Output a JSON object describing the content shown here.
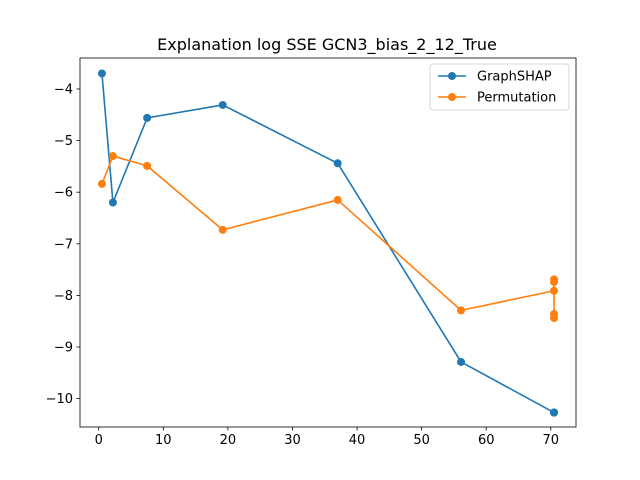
{
  "chart_data": {
    "type": "line",
    "title": "Explanation log SSE GCN3_bias_2_12_True",
    "xlabel": "",
    "ylabel": "",
    "xlim": [
      -2.9,
      73.9
    ],
    "ylim": [
      -10.55,
      -3.4
    ],
    "xticks": [
      0,
      10,
      20,
      30,
      40,
      50,
      60,
      70
    ],
    "yticks": [
      -10,
      -9,
      -8,
      -7,
      -6,
      -5,
      -4
    ],
    "grid": false,
    "legend_position": "top-right",
    "series": [
      {
        "name": "GraphSHAP",
        "color": "#1f77b4",
        "x": [
          0.5,
          2.2,
          7.5,
          19.2,
          37.0,
          56.1,
          70.5,
          70.5,
          70.5
        ],
        "y": [
          -3.7,
          -6.2,
          -4.56,
          -4.31,
          -5.44,
          -9.29,
          -10.27,
          -10.27,
          -10.27
        ]
      },
      {
        "name": "Permutation",
        "color": "#ff7f0e",
        "x": [
          0.5,
          2.2,
          7.5,
          19.2,
          37.0,
          56.1,
          70.5,
          70.5,
          70.5,
          70.5,
          70.5
        ],
        "y": [
          -5.84,
          -5.3,
          -5.49,
          -6.73,
          -6.15,
          -8.29,
          -7.91,
          -7.74,
          -7.69,
          -8.36,
          -8.44
        ]
      }
    ]
  }
}
